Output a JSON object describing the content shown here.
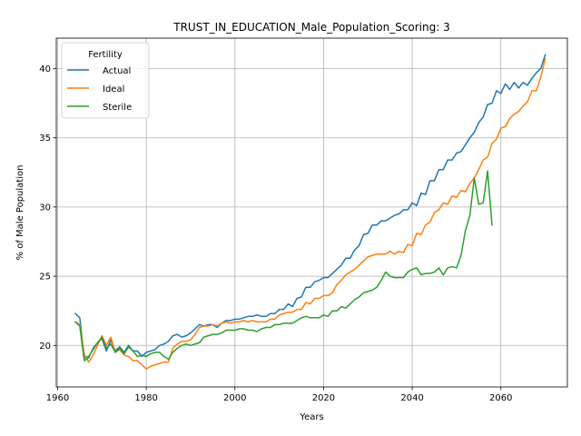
{
  "chart_data": {
    "type": "line",
    "title": "TRUST_IN_EDUCATION_Male_Population_Scoring: 3",
    "xlabel": "Years",
    "ylabel": "% of Male Population",
    "xlim": [
      1959.7,
      2075
    ],
    "ylim": [
      17.0,
      42.2
    ],
    "xticks": [
      1960,
      1980,
      2000,
      2020,
      2040,
      2060
    ],
    "yticks": [
      20,
      25,
      30,
      35,
      40
    ],
    "grid": true,
    "legend": {
      "title": "Fertility",
      "position": "top-left"
    },
    "series": [
      {
        "name": "Actual",
        "color": "#1f77b4",
        "x": [
          1964,
          1965,
          1966,
          1967,
          1968,
          1969,
          1970,
          1971,
          1972,
          1973,
          1974,
          1975,
          1976,
          1977,
          1978,
          1979,
          1980,
          1981,
          1982,
          1983,
          1984,
          1985,
          1986,
          1987,
          1988,
          1989,
          1990,
          1991,
          1992,
          1993,
          1994,
          1995,
          1996,
          1997,
          1998,
          1999,
          2000,
          2001,
          2002,
          2003,
          2004,
          2005,
          2006,
          2007,
          2008,
          2009,
          2010,
          2011,
          2012,
          2013,
          2014,
          2015,
          2016,
          2017,
          2018,
          2019,
          2020,
          2021,
          2022,
          2023,
          2024,
          2025,
          2026,
          2027,
          2028,
          2029,
          2030,
          2031,
          2032,
          2033,
          2034,
          2035,
          2036,
          2037,
          2038,
          2039,
          2040,
          2041,
          2042,
          2043,
          2044,
          2045,
          2046,
          2047,
          2048,
          2049,
          2050,
          2051,
          2052,
          2053,
          2054,
          2055,
          2056,
          2057,
          2058,
          2059,
          2060,
          2061,
          2062,
          2063,
          2064,
          2065,
          2066,
          2067,
          2068,
          2069,
          2070
        ],
        "y": [
          22.3,
          22.0,
          19.1,
          19.2,
          19.7,
          20.2,
          20.5,
          19.6,
          20.4,
          19.6,
          19.9,
          19.5,
          20.0,
          19.6,
          19.6,
          19.2,
          19.5,
          19.6,
          19.7,
          20.0,
          20.1,
          20.3,
          20.7,
          20.8,
          20.6,
          20.7,
          20.9,
          21.2,
          21.5,
          21.4,
          21.5,
          21.5,
          21.3,
          21.6,
          21.8,
          21.8,
          21.9,
          21.9,
          22.0,
          22.1,
          22.1,
          22.2,
          22.1,
          22.1,
          22.3,
          22.3,
          22.6,
          22.6,
          23.0,
          22.8,
          23.4,
          23.5,
          24.2,
          24.2,
          24.6,
          24.7,
          24.9,
          24.9,
          25.2,
          25.5,
          25.8,
          26.3,
          26.3,
          26.9,
          27.2,
          28.0,
          28.1,
          28.7,
          28.7,
          29.0,
          29.0,
          29.2,
          29.4,
          29.5,
          29.8,
          29.8,
          30.3,
          30.1,
          31.0,
          30.9,
          31.9,
          31.9,
          32.7,
          32.7,
          33.4,
          33.4,
          33.9,
          34.0,
          34.5,
          35.0,
          35.4,
          36.1,
          36.5,
          37.4,
          37.5,
          38.4,
          38.2,
          38.9,
          38.5,
          39.0,
          38.6,
          39.0,
          38.8,
          39.3,
          39.7,
          40.0,
          41.0
        ]
      },
      {
        "name": "Ideal",
        "color": "#ff7f0e",
        "x": [
          1964,
          1965,
          1966,
          1967,
          1968,
          1969,
          1970,
          1971,
          1972,
          1973,
          1974,
          1975,
          1976,
          1977,
          1978,
          1979,
          1980,
          1981,
          1982,
          1983,
          1984,
          1985,
          1986,
          1987,
          1988,
          1989,
          1990,
          1991,
          1992,
          1993,
          1994,
          1995,
          1996,
          1997,
          1998,
          1999,
          2000,
          2001,
          2002,
          2003,
          2004,
          2005,
          2006,
          2007,
          2008,
          2009,
          2010,
          2011,
          2012,
          2013,
          2014,
          2015,
          2016,
          2017,
          2018,
          2019,
          2020,
          2021,
          2022,
          2023,
          2024,
          2025,
          2026,
          2027,
          2028,
          2029,
          2030,
          2031,
          2032,
          2033,
          2034,
          2035,
          2036,
          2037,
          2038,
          2039,
          2040,
          2041,
          2042,
          2043,
          2044,
          2045,
          2046,
          2047,
          2048,
          2049,
          2050,
          2051,
          2052,
          2053,
          2054,
          2055,
          2056,
          2057,
          2058,
          2059,
          2060,
          2061,
          2062,
          2063,
          2064,
          2065,
          2066,
          2067,
          2068,
          2069,
          2070
        ],
        "y": [
          21.7,
          21.5,
          19.4,
          18.8,
          19.3,
          20.0,
          20.7,
          20.0,
          20.6,
          19.5,
          19.7,
          19.3,
          19.2,
          18.9,
          18.9,
          18.6,
          18.3,
          18.5,
          18.6,
          18.7,
          18.8,
          18.8,
          19.8,
          20.1,
          20.3,
          20.3,
          20.4,
          20.8,
          21.3,
          21.4,
          21.4,
          21.5,
          21.4,
          21.6,
          21.7,
          21.6,
          21.7,
          21.7,
          21.8,
          21.7,
          21.8,
          21.7,
          21.7,
          21.7,
          21.9,
          21.9,
          22.2,
          22.3,
          22.4,
          22.4,
          22.6,
          22.6,
          23.1,
          23.0,
          23.4,
          23.4,
          23.6,
          23.6,
          23.8,
          24.4,
          24.7,
          25.1,
          25.3,
          25.5,
          25.8,
          26.1,
          26.4,
          26.5,
          26.6,
          26.6,
          26.6,
          26.8,
          26.6,
          26.8,
          26.7,
          27.3,
          27.2,
          28.1,
          28.0,
          28.7,
          28.9,
          29.6,
          29.8,
          30.3,
          30.2,
          30.8,
          30.7,
          31.2,
          31.1,
          31.7,
          32.1,
          32.7,
          33.4,
          33.6,
          34.6,
          34.9,
          35.7,
          35.8,
          36.4,
          36.7,
          36.9,
          37.3,
          37.6,
          38.4,
          38.4,
          39.4,
          40.7
        ]
      },
      {
        "name": "Sterile",
        "color": "#2ca02c",
        "x": [
          1964,
          1965,
          1966,
          1967,
          1968,
          1969,
          1970,
          1971,
          1972,
          1973,
          1974,
          1975,
          1976,
          1977,
          1978,
          1979,
          1980,
          1981,
          1982,
          1983,
          1984,
          1985,
          1986,
          1987,
          1988,
          1989,
          1990,
          1991,
          1992,
          1993,
          1994,
          1995,
          1996,
          1997,
          1998,
          1999,
          2000,
          2001,
          2002,
          2003,
          2004,
          2005,
          2006,
          2007,
          2008,
          2009,
          2010,
          2011,
          2012,
          2013,
          2014,
          2015,
          2016,
          2017,
          2018,
          2019,
          2020,
          2021,
          2022,
          2023,
          2024,
          2025,
          2026,
          2027,
          2028,
          2029,
          2030,
          2031,
          2032,
          2033,
          2034,
          2035,
          2036,
          2037,
          2038,
          2039,
          2040,
          2041,
          2042,
          2043,
          2044,
          2045,
          2046,
          2047,
          2048,
          2049,
          2050,
          2051,
          2052,
          2053,
          2054,
          2055,
          2056,
          2057,
          2058
        ],
        "y": [
          21.7,
          21.4,
          18.9,
          19.1,
          19.8,
          20.2,
          20.6,
          19.8,
          20.1,
          19.5,
          19.8,
          19.4,
          19.9,
          19.6,
          19.2,
          19.3,
          19.2,
          19.4,
          19.5,
          19.5,
          19.2,
          19.0,
          19.5,
          19.8,
          20.0,
          20.1,
          20.0,
          20.1,
          20.2,
          20.6,
          20.7,
          20.8,
          20.8,
          20.9,
          21.1,
          21.1,
          21.1,
          21.2,
          21.2,
          21.1,
          21.1,
          21.0,
          21.2,
          21.3,
          21.3,
          21.5,
          21.5,
          21.6,
          21.6,
          21.6,
          21.8,
          22.0,
          22.1,
          22.0,
          22.0,
          22.0,
          22.2,
          22.1,
          22.5,
          22.5,
          22.8,
          22.7,
          23.0,
          23.3,
          23.5,
          23.8,
          23.9,
          24.0,
          24.2,
          24.7,
          25.3,
          25.0,
          24.9,
          24.9,
          24.9,
          25.3,
          25.5,
          25.6,
          25.1,
          25.2,
          25.2,
          25.3,
          25.6,
          25.1,
          25.6,
          25.7,
          25.6,
          26.5,
          28.3,
          29.4,
          32.1,
          30.2,
          30.3,
          32.6,
          28.7
        ]
      }
    ]
  }
}
